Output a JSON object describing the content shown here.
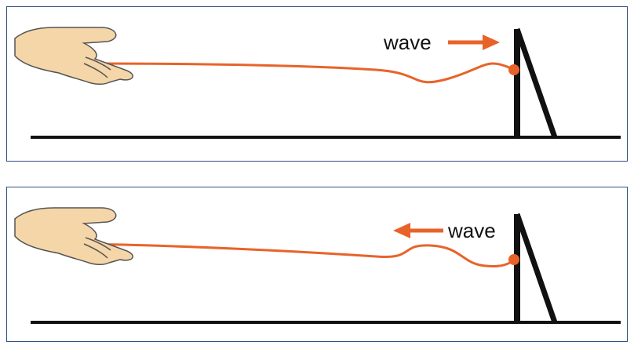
{
  "panels": [
    {
      "label": "wave",
      "direction": "right"
    },
    {
      "label": "wave",
      "direction": "left"
    }
  ],
  "colors": {
    "rope": "#e8632a",
    "arrow": "#e8632a",
    "ground": "#111111",
    "frame": "#2f4f7f",
    "skin": "#f5d6a8",
    "skin_outline": "#555555"
  }
}
